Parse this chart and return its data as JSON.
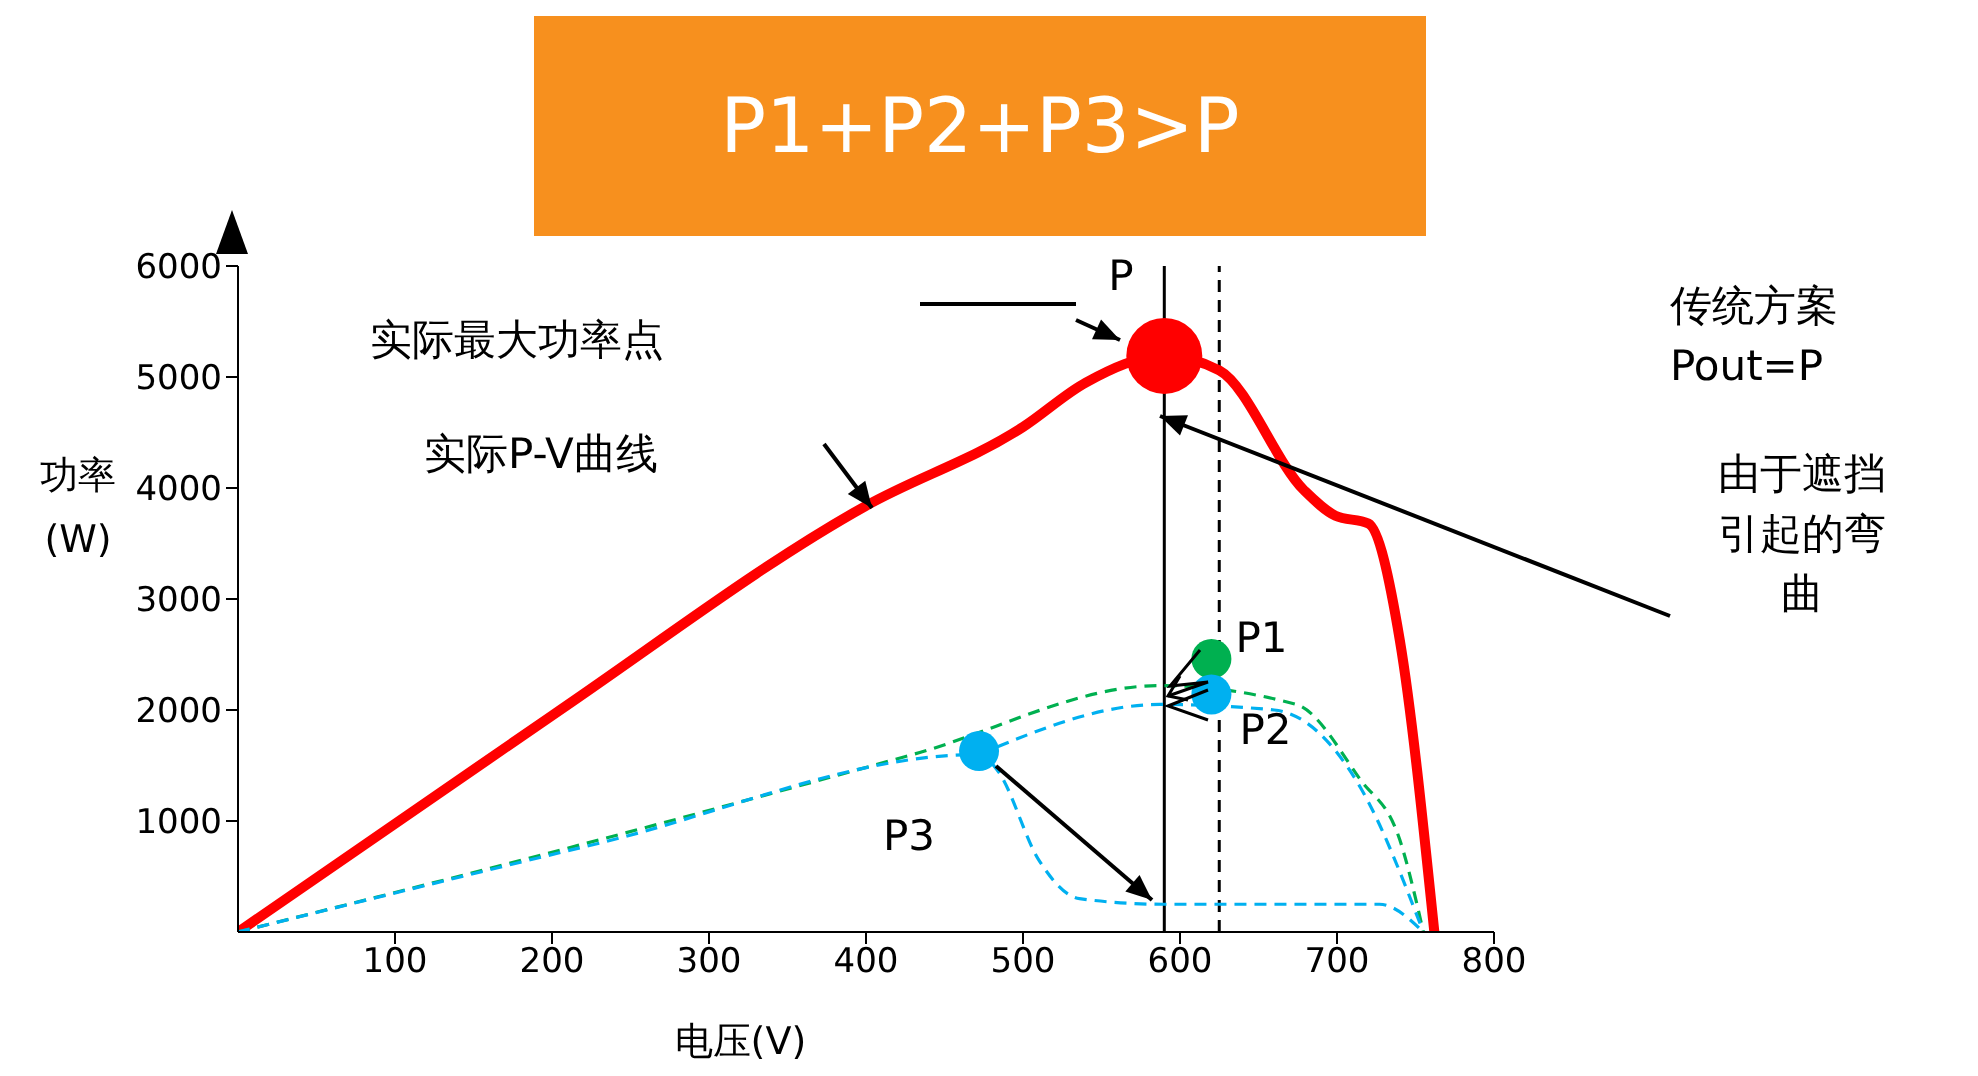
{
  "chart_data": {
    "type": "line",
    "title": "P1+P2+P3>P",
    "xlabel": "电压(V)",
    "ylabel": "功率\n(W)",
    "xlim": [
      0,
      800
    ],
    "xticks": [
      100,
      200,
      300,
      400,
      500,
      600,
      700,
      800
    ],
    "ylim": [
      0,
      6000
    ],
    "yticks": [
      1000,
      2000,
      3000,
      4000,
      5000,
      6000
    ],
    "series": [
      {
        "color": "#ff0000",
        "line_style": "solid",
        "x": [
          0,
          200,
          400,
          500,
          540,
          590,
          625,
          679,
          699,
          720,
          740,
          762
        ],
        "values": [
          0,
          1950,
          3840,
          4550,
          4950,
          5190,
          5060,
          3980,
          3750,
          3680,
          2630,
          0
        ]
      },
      {
        "color": "#00b050",
        "line_style": "dashed",
        "x": [
          0,
          230,
          430,
          587,
          674,
          715,
          740,
          755
        ],
        "values": [
          0,
          830,
          1600,
          2220,
          2050,
          1370,
          830,
          0
        ]
      },
      {
        "color": "#00b0f0",
        "line_style": "dashed",
        "x": [
          472,
          587,
          660,
          715,
          755
        ],
        "values": [
          1600,
          2050,
          2000,
          1300,
          0
        ]
      },
      {
        "color": "#00b0f0",
        "line_style": "dashed",
        "x": [
          0,
          230,
          472,
          484,
          510,
          536,
          589,
          727,
          755
        ],
        "values": [
          0,
          800,
          1600,
          1450,
          650,
          300,
          250,
          250,
          0
        ]
      },
      {
        "type": "scatter",
        "marker": "circle",
        "color": "#ff0000",
        "x": [
          590
        ],
        "values": [
          5190
        ]
      },
      {
        "type": "scatter",
        "marker": "circle",
        "color": "#00b050",
        "x": [
          620
        ],
        "values": [
          2460
        ]
      },
      {
        "type": "scatter",
        "marker": "circle",
        "color": "#00b0f0",
        "x": [
          620
        ],
        "values": [
          2140
        ]
      },
      {
        "type": "scatter",
        "marker": "circle",
        "color": "#00b0f0",
        "x": [
          472
        ],
        "values": [
          1630
        ]
      }
    ],
    "ref_lines": [
      {
        "axis": "x",
        "value": 590,
        "color": "#000000",
        "line_style": "solid"
      },
      {
        "axis": "x",
        "value": 625,
        "color": "#000000",
        "line_style": "dashed"
      }
    ],
    "annotations": [
      {
        "text": "P",
        "x": 590,
        "y": 5190
      },
      {
        "text": "P1",
        "x": 620,
        "y": 2460
      },
      {
        "text": "P2",
        "x": 620,
        "y": 2140
      },
      {
        "text": "P3",
        "x": 472,
        "y": 1630
      },
      "实际最大功率点",
      "实际P-V曲线",
      "传统方案\nPout=P",
      "由于遮挡引起的弯曲"
    ]
  }
}
